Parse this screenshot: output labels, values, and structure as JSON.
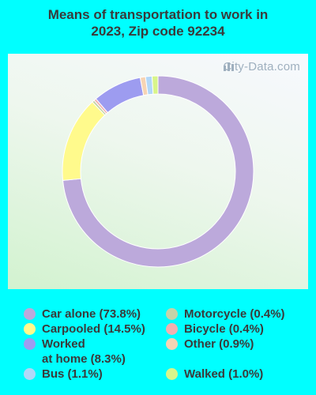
{
  "title_line1": "Means of transportation to work in",
  "title_line2": "2023, Zip code 92234",
  "watermark": "City-Data.com",
  "chart_data": {
    "type": "donut",
    "title": "Means of transportation to work in 2023, Zip code 92234",
    "legend_placement": "bottom",
    "series": [
      {
        "name": "Car alone (73.8%)",
        "value": 73.8,
        "color": "#BCA9DB"
      },
      {
        "name": "Carpooled (14.5%)",
        "value": 14.5,
        "color": "#FFFA8C"
      },
      {
        "name": "Motorcycle (0.4%)",
        "value": 0.4,
        "color": "#C5D3A8"
      },
      {
        "name": "Bicycle (0.4%)",
        "value": 0.4,
        "color": "#F2B0B0"
      },
      {
        "name": "Worked at home (8.3%)",
        "value": 8.3,
        "color": "#9D9CF0"
      },
      {
        "name": "Other (0.9%)",
        "value": 0.9,
        "color": "#F6D4B4"
      },
      {
        "name": "Bus (1.1%)",
        "value": 1.1,
        "color": "#B2D8F8"
      },
      {
        "name": "Walked (1.0%)",
        "value": 1.0,
        "color": "#D8F58A"
      }
    ]
  },
  "legend": {
    "car_alone": "Car alone (73.8%)",
    "carpooled": "Carpooled (14.5%)",
    "worked_line1": "Worked",
    "worked_line2": "at home (8.3%)",
    "bus": "Bus (1.1%)",
    "motorcycle": "Motorcycle (0.4%)",
    "bicycle": "Bicycle (0.4%)",
    "other": "Other (0.9%)",
    "walked": "Walked (1.0%)"
  }
}
